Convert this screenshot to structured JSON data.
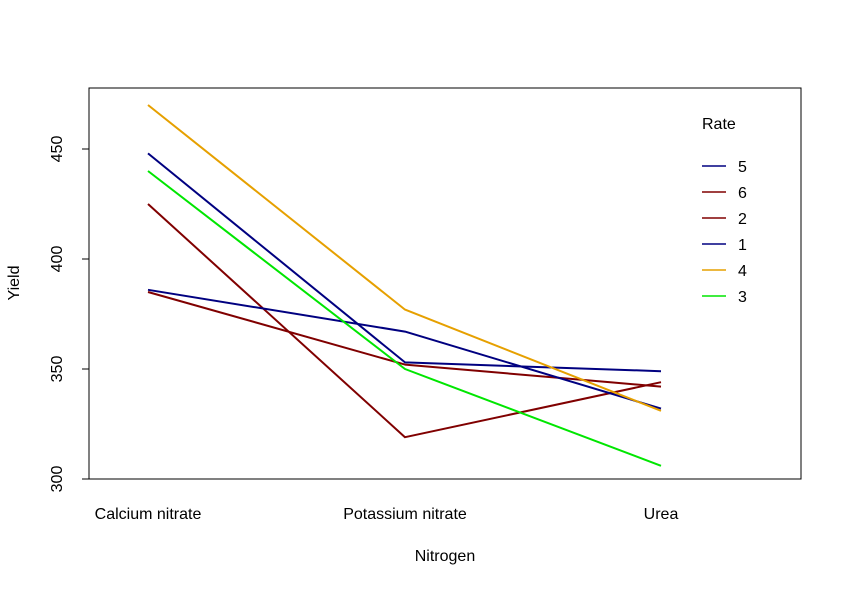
{
  "chart_data": {
    "type": "line",
    "title": "",
    "xlabel": "Nitrogen",
    "ylabel": "Yield",
    "categories": [
      "Calcium nitrate",
      "Potassium nitrate",
      "Urea"
    ],
    "ylim": [
      300,
      470
    ],
    "yticks": [
      300,
      350,
      400,
      450
    ],
    "grid": false,
    "legend": {
      "title": "Rate",
      "placement": "top-right",
      "boxed": false
    },
    "series": [
      {
        "name": "5",
        "color": "#000080",
        "values": [
          448,
          353,
          349
        ]
      },
      {
        "name": "6",
        "color": "#800000",
        "values": [
          385,
          352,
          342
        ]
      },
      {
        "name": "2",
        "color": "#800000",
        "values": [
          425,
          319,
          344
        ]
      },
      {
        "name": "1",
        "color": "#000080",
        "values": [
          386,
          367,
          332
        ]
      },
      {
        "name": "4",
        "color": "#E6A000",
        "values": [
          470,
          377,
          331
        ]
      },
      {
        "name": "3",
        "color": "#00E600",
        "values": [
          440,
          350,
          306
        ]
      }
    ]
  }
}
